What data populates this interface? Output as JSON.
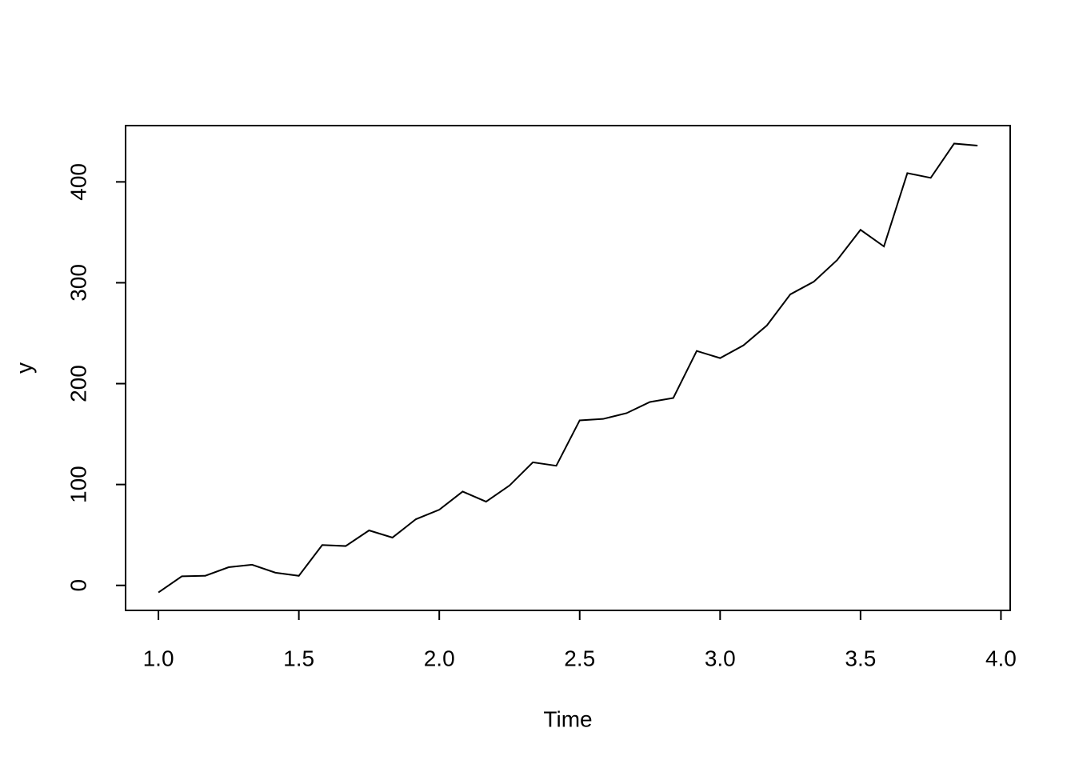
{
  "chart_data": {
    "type": "line",
    "x_label": "Time",
    "y_label": "y",
    "x": [
      1.0,
      1.0833,
      1.1667,
      1.25,
      1.3333,
      1.4167,
      1.5,
      1.5833,
      1.6667,
      1.75,
      1.8333,
      1.9167,
      2.0,
      2.0833,
      2.1667,
      2.25,
      2.3333,
      2.4167,
      2.5,
      2.5833,
      2.6667,
      2.75,
      2.8333,
      2.9167,
      3.0,
      3.0833,
      3.1667,
      3.25,
      3.3333,
      3.4167,
      3.5,
      3.5833,
      3.6667,
      3.75,
      3.8333,
      3.9167
    ],
    "values": [
      -7,
      9,
      9.5,
      18,
      20.5,
      12.6,
      9.5,
      40,
      39,
      54.5,
      47.4,
      65.6,
      75,
      93,
      83,
      99,
      122,
      118.6,
      163.6,
      165,
      170.7,
      181.8,
      185.8,
      232.4,
      225.3,
      238,
      257.7,
      288.5,
      301,
      322.5,
      352.5,
      336,
      408.7,
      404,
      438,
      436
    ],
    "color": "#000000",
    "xlim": [
      0.883,
      4.033
    ],
    "ylim": [
      -24.8,
      455.8
    ],
    "xticks": [
      {
        "value": 1,
        "label": "1.0"
      },
      {
        "value": 1.5,
        "label": "1.5"
      },
      {
        "value": 2,
        "label": "2.0"
      },
      {
        "value": 2.5,
        "label": "2.5"
      },
      {
        "value": 3,
        "label": "3.0"
      },
      {
        "value": 3.5,
        "label": "3.5"
      },
      {
        "value": 4,
        "label": "4.0"
      }
    ],
    "yticks": [
      0,
      100,
      200,
      300,
      400
    ]
  }
}
